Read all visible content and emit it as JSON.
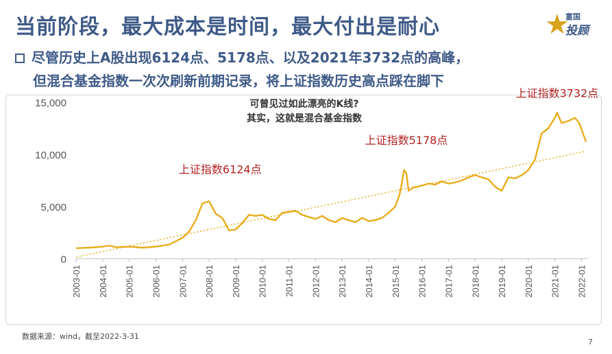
{
  "header": {
    "title": "当前阶段，最大成本是时间，最大付出是耐心",
    "logo_top": "富国",
    "logo_main": "投顾",
    "bullet_line1": "尽管历史上A股出现6124点、5178点、以及2021年3732点的高峰，",
    "bullet_line2": "但混合基金指数一次次刷新前期记录，将上证指数历史高点踩在脚下"
  },
  "chart_data": {
    "type": "line",
    "title_line1": "可曾见过如此漂亮的K线?",
    "title_line2": "其实，这就是混合基金指数",
    "ylim": [
      0,
      15000
    ],
    "y_ticks": [
      0,
      5000,
      10000,
      15000
    ],
    "y_tick_labels": [
      "0",
      "5,000",
      "10,000",
      "15,000"
    ],
    "x_tick_labels": [
      "2003-01",
      "2004-01",
      "2005-01",
      "2006-01",
      "2007-01",
      "2008-01",
      "2009-01",
      "2010-01",
      "2011-01",
      "2012-01",
      "2013-01",
      "2014-01",
      "2015-01",
      "2016-01",
      "2017-01",
      "2018-01",
      "2019-01",
      "2020-01",
      "2021-01",
      "2022-01"
    ],
    "xlim": [
      "2003-01",
      "2022-03"
    ],
    "grid": false,
    "series": [
      {
        "color": "#e8ac1c",
        "x": [
          "2003-01",
          "2003-07",
          "2004-01",
          "2004-04",
          "2004-07",
          "2005-01",
          "2005-07",
          "2006-01",
          "2006-07",
          "2007-01",
          "2007-04",
          "2007-07",
          "2007-10",
          "2008-01",
          "2008-04",
          "2008-07",
          "2008-10",
          "2009-01",
          "2009-04",
          "2009-07",
          "2009-10",
          "2010-01",
          "2010-04",
          "2010-07",
          "2010-10",
          "2011-01",
          "2011-04",
          "2011-07",
          "2011-10",
          "2012-01",
          "2012-04",
          "2012-07",
          "2012-10",
          "2013-01",
          "2013-04",
          "2013-07",
          "2013-10",
          "2014-01",
          "2014-04",
          "2014-07",
          "2014-10",
          "2015-01",
          "2015-03",
          "2015-05",
          "2015-06",
          "2015-07",
          "2015-09",
          "2016-01",
          "2016-04",
          "2016-07",
          "2016-10",
          "2017-01",
          "2017-04",
          "2017-07",
          "2017-10",
          "2018-01",
          "2018-04",
          "2018-07",
          "2018-10",
          "2019-01",
          "2019-04",
          "2019-07",
          "2019-10",
          "2020-01",
          "2020-04",
          "2020-07",
          "2020-10",
          "2021-01",
          "2021-02",
          "2021-04",
          "2021-07",
          "2021-10",
          "2021-12",
          "2022-01",
          "2022-03"
        ],
        "values": [
          1000,
          1050,
          1150,
          1250,
          1100,
          1150,
          1050,
          1150,
          1350,
          2000,
          2600,
          3700,
          5300,
          5500,
          4300,
          3900,
          2700,
          2800,
          3400,
          4200,
          4100,
          4200,
          3800,
          3700,
          4400,
          4500,
          4600,
          4200,
          4000,
          3800,
          4100,
          3700,
          3500,
          3900,
          3700,
          3500,
          3900,
          3600,
          3700,
          3900,
          4400,
          5000,
          6200,
          8500,
          8200,
          6500,
          6800,
          7000,
          7200,
          7100,
          7400,
          7200,
          7300,
          7500,
          7800,
          8000,
          7800,
          7600,
          6900,
          6500,
          7800,
          7700,
          8000,
          8500,
          9500,
          12000,
          12500,
          13500,
          14000,
          13000,
          13200,
          13500,
          13000,
          12400,
          11200
        ]
      }
    ],
    "trendline": {
      "color": "#e8ac1c",
      "style": "dotted",
      "from": 150,
      "to": 10300
    },
    "annotations": [
      {
        "text": "上证指数6124点",
        "x": "2008-06",
        "y": 8200,
        "color": "#b22222"
      },
      {
        "text": "上证指数5178点",
        "x": "2015-06",
        "y": 11000,
        "color": "#b22222"
      },
      {
        "text": "上证指数3732点",
        "x": "2021-02",
        "y": 15500,
        "color": "#b22222"
      }
    ]
  },
  "footer": {
    "source": "数据来源：wind，截至2022-3-31",
    "page_number": "7"
  }
}
